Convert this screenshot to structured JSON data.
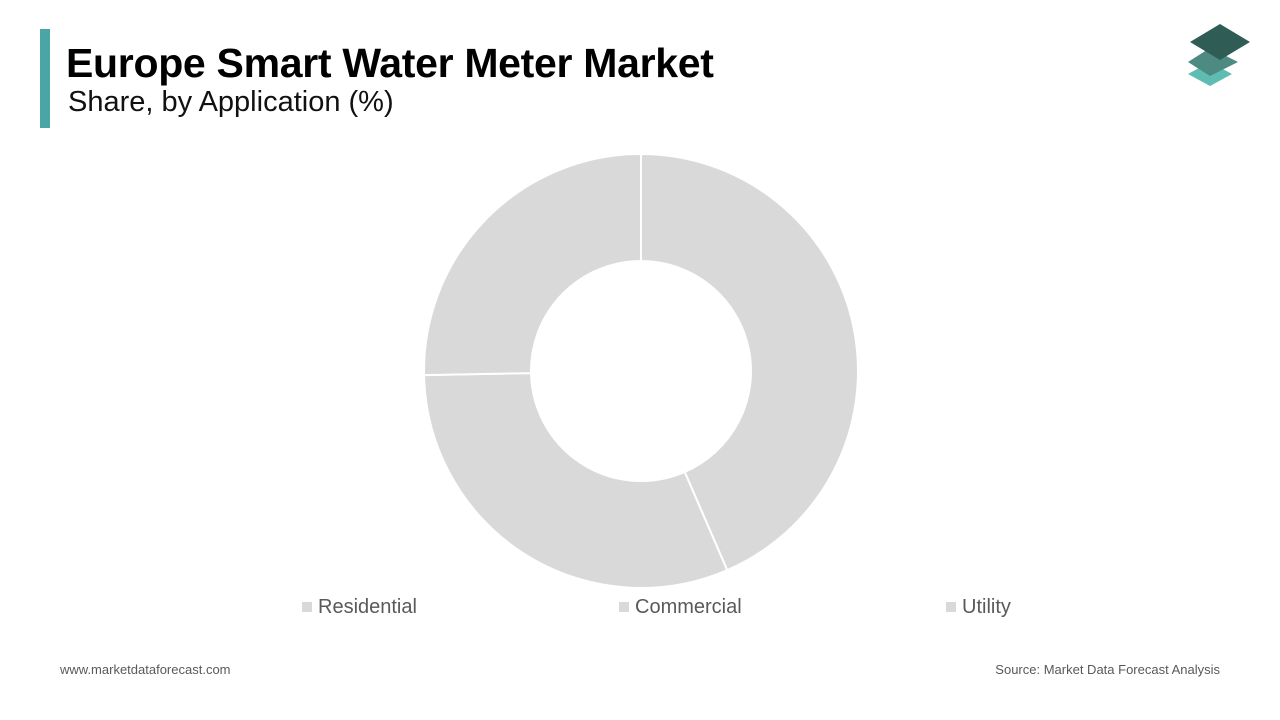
{
  "header": {
    "title": "Europe Smart Water Meter Market",
    "subtitle": "Share, by Application (%)"
  },
  "colors": {
    "accent": "#4aa6a6",
    "slice_fill": "#d9d9d9",
    "slice_stroke": "#ffffff",
    "legend_swatch": "#d9d9d9",
    "logo_top": "#2f5d56",
    "logo_middle": "#4d8b82",
    "logo_bottom": "#5fbcb3"
  },
  "logo": {
    "icon": "stacked-layers-icon"
  },
  "chart_data": {
    "type": "pie",
    "donut": true,
    "start_angle_deg": 0,
    "categories": [
      "Residential",
      "Commercial",
      "Utility"
    ],
    "values": [
      43.5,
      31.2,
      25.3
    ],
    "legend_position": "bottom"
  },
  "footer": {
    "website": "www.marketdataforecast.com",
    "source": "Source: Market Data Forecast Analysis"
  }
}
